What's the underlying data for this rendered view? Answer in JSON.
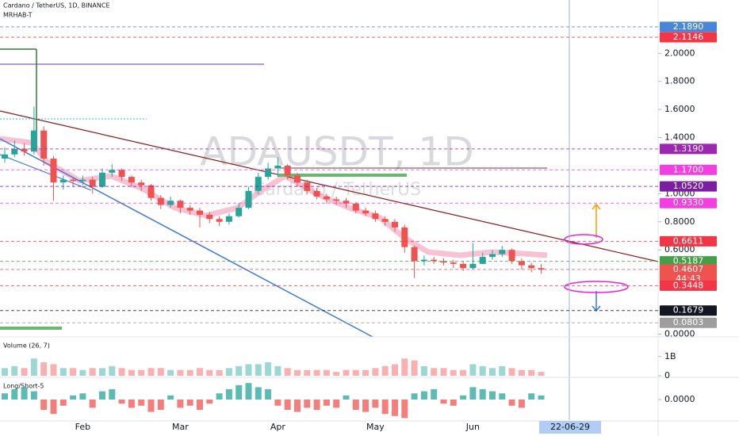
{
  "chart_data": [
    {
      "type": "candlestick",
      "title": "Cardano / TetherUS, 1D, BINANCE",
      "subtitle": "MRHAB-T",
      "watermark": "ADAUSDT, 1D",
      "watermark_subtitle": "Cardano / TetherUS",
      "cursor_date": "22-06-29",
      "categories": [
        null,
        null,
        null,
        null,
        null,
        null,
        null,
        null,
        "Feb",
        null,
        null,
        null,
        null,
        null,
        null,
        null,
        null,
        null,
        "Mar",
        null,
        null,
        null,
        null,
        null,
        null,
        null,
        null,
        null,
        "Apr",
        null,
        null,
        null,
        null,
        null,
        null,
        null,
        null,
        null,
        "May",
        null,
        null,
        null,
        null,
        null,
        null,
        null,
        null,
        null,
        "Jun",
        null,
        null,
        null,
        null,
        null,
        null,
        null
      ],
      "open": [
        1.25,
        1.28,
        1.32,
        1.3,
        1.45,
        1.25,
        1.08,
        1.1,
        1.09,
        1.1,
        1.05,
        1.15,
        1.17,
        1.12,
        1.08,
        1.06,
        0.97,
        0.92,
        0.95,
        0.9,
        0.88,
        0.85,
        0.82,
        0.8,
        0.84,
        0.9,
        1.02,
        1.12,
        1.18,
        1.2,
        1.13,
        1.08,
        1.02,
        0.98,
        0.96,
        0.95,
        0.93,
        0.88,
        0.86,
        0.82,
        0.8,
        0.76,
        0.62,
        0.52,
        0.53,
        0.52,
        0.51,
        0.5,
        0.47,
        0.5,
        0.55,
        0.57,
        0.6,
        0.52,
        0.49,
        0.47
      ],
      "high": [
        1.33,
        1.38,
        1.36,
        1.62,
        1.48,
        1.27,
        1.13,
        1.12,
        1.13,
        1.12,
        1.18,
        1.21,
        1.18,
        1.13,
        1.1,
        1.07,
        0.99,
        0.98,
        0.96,
        0.92,
        0.9,
        0.87,
        0.84,
        0.86,
        0.93,
        1.05,
        1.15,
        1.22,
        1.26,
        1.21,
        1.15,
        1.1,
        1.04,
        1.0,
        0.98,
        0.97,
        0.94,
        0.9,
        0.88,
        0.84,
        0.82,
        0.78,
        0.63,
        0.56,
        0.55,
        0.54,
        0.53,
        0.52,
        0.65,
        0.58,
        0.6,
        0.63,
        0.61,
        0.54,
        0.51,
        0.5
      ],
      "low": [
        1.22,
        1.26,
        1.27,
        1.28,
        1.2,
        0.95,
        1.03,
        1.05,
        1.06,
        1.0,
        1.04,
        1.12,
        1.09,
        1.05,
        1.02,
        0.95,
        0.89,
        0.9,
        0.86,
        0.85,
        0.76,
        0.79,
        0.77,
        0.78,
        0.83,
        0.89,
        1.0,
        1.1,
        1.12,
        1.1,
        1.05,
        1.0,
        0.96,
        0.93,
        0.92,
        0.9,
        0.86,
        0.84,
        0.8,
        0.77,
        0.73,
        0.58,
        0.4,
        0.49,
        0.5,
        0.49,
        0.47,
        0.45,
        0.46,
        0.5,
        0.53,
        0.55,
        0.5,
        0.46,
        0.44,
        0.43
      ],
      "close": [
        1.28,
        1.32,
        1.3,
        1.45,
        1.25,
        1.08,
        1.1,
        1.09,
        1.1,
        1.05,
        1.15,
        1.17,
        1.12,
        1.08,
        1.06,
        0.97,
        0.92,
        0.95,
        0.9,
        0.88,
        0.85,
        0.82,
        0.8,
        0.84,
        0.9,
        1.02,
        1.12,
        1.18,
        1.2,
        1.13,
        1.08,
        1.02,
        0.98,
        0.96,
        0.95,
        0.93,
        0.88,
        0.86,
        0.82,
        0.8,
        0.76,
        0.62,
        0.52,
        0.53,
        0.52,
        0.51,
        0.5,
        0.47,
        0.5,
        0.55,
        0.57,
        0.6,
        0.52,
        0.49,
        0.47,
        0.46
      ],
      "up_color": "#26a69a",
      "down_color": "#ef5350",
      "ylim": [
        -0.02,
        2.38
      ],
      "yticks": [
        {
          "value": 0,
          "label": "0.0000"
        },
        {
          "value": 0.6,
          "label": "0.6000"
        },
        {
          "value": 0.8,
          "label": "0.8000"
        },
        {
          "value": 1,
          "label": "1.0000"
        },
        {
          "value": 1.4,
          "label": "1.4000"
        },
        {
          "value": 1.6,
          "label": "1.6000"
        },
        {
          "value": 1.8,
          "label": "1.8000"
        },
        {
          "value": 2,
          "label": "2.0000"
        }
      ],
      "levels": [
        {
          "value": 2.189,
          "label": "2.1890",
          "color": "#4a86d8"
        },
        {
          "value": 2.1146,
          "label": "2.1146",
          "color": "#f23645"
        },
        {
          "value": 1.319,
          "label": "1.3190",
          "color": "#9c27b0"
        },
        {
          "value": 1.17,
          "label": "1.1700",
          "color": "#f23fe0"
        },
        {
          "value": 1.052,
          "label": "1.0520",
          "color": "#7b1fa2"
        },
        {
          "value": 0.933,
          "label": "0.9330",
          "color": "#f23fe0"
        },
        {
          "value": 0.6611,
          "label": "0.6611",
          "color": "#f23645"
        },
        {
          "value": 0.5187,
          "label": "0.5187",
          "color": "#43a047"
        },
        {
          "value": 0.4607,
          "label": "0.4607",
          "color": "#ef5350",
          "countdown": "44:43"
        },
        {
          "value": 0.3448,
          "label": "0.3448",
          "color": "#f23645"
        },
        {
          "value": 0.1679,
          "label": "0.1679",
          "color": "#131722"
        },
        {
          "value": 0.0803,
          "label": "0.0803",
          "color": "#9e9e9e"
        }
      ]
    },
    {
      "type": "bar",
      "title": "Volume (26, 7)",
      "values": [
        400000000.0,
        500000000.0,
        400000000.0,
        900000000.0,
        700000000.0,
        600000000.0,
        400000000.0,
        400000000.0,
        300000000.0,
        400000000.0,
        400000000.0,
        500000000.0,
        400000000.0,
        300000000.0,
        300000000.0,
        400000000.0,
        400000000.0,
        300000000.0,
        300000000.0,
        300000000.0,
        400000000.0,
        300000000.0,
        300000000.0,
        400000000.0,
        500000000.0,
        600000000.0,
        600000000.0,
        700000000.0,
        500000000.0,
        400000000.0,
        300000000.0,
        300000000.0,
        300000000.0,
        300000000.0,
        200000000.0,
        300000000.0,
        300000000.0,
        300000000.0,
        400000000.0,
        500000000.0,
        600000000.0,
        900000000.0,
        800000000.0,
        500000000.0,
        400000000.0,
        400000000.0,
        300000000.0,
        300000000.0,
        600000000.0,
        500000000.0,
        400000000.0,
        500000000.0,
        400000000.0,
        300000000.0,
        300000000.0,
        200000000.0
      ],
      "ylim": [
        0,
        1900000000.0
      ],
      "yticks": [
        0,
        {
          "value": 1000000000.0,
          "label": "1B"
        }
      ]
    },
    {
      "type": "bar",
      "title": "Long/Short-5",
      "values": [
        0.3,
        0.5,
        0.6,
        0.4,
        -0.5,
        -0.7,
        -0.3,
        0.2,
        0.3,
        -0.4,
        0.4,
        0.5,
        -0.2,
        -0.4,
        -0.3,
        -0.6,
        -0.5,
        0.2,
        -0.4,
        -0.3,
        -0.5,
        -0.2,
        0.3,
        0.5,
        0.7,
        0.8,
        0.6,
        0.5,
        -0.3,
        -0.5,
        -0.6,
        -0.4,
        -0.5,
        -0.3,
        -0.4,
        0.2,
        -0.5,
        -0.6,
        -0.4,
        -0.7,
        -0.8,
        -0.9,
        0.3,
        0.4,
        0.5,
        -0.2,
        -0.3,
        0.2,
        0.6,
        0.5,
        0.4,
        0.3,
        -0.3,
        -0.4,
        0.3,
        0.2
      ],
      "ylim": [
        -1,
        1
      ],
      "yticks": [
        {
          "value": 0,
          "label": "0.0000"
        }
      ]
    }
  ]
}
